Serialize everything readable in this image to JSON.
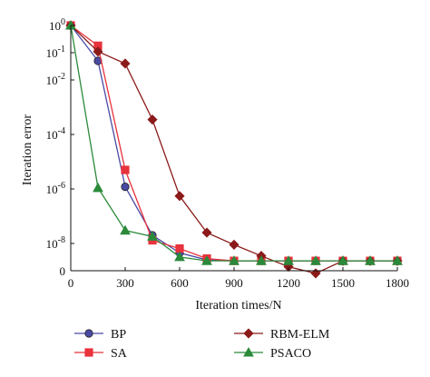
{
  "chart_data": {
    "type": "line",
    "xlabel": "Iteration times/N",
    "ylabel": "Iteration error",
    "xlim": [
      0,
      1800
    ],
    "x_ticks": [
      0,
      300,
      600,
      900,
      1200,
      1500,
      1800
    ],
    "y_scale": "log",
    "y_ticks": [
      {
        "label": "0",
        "value": 1e-09
      },
      {
        "label": "10-8",
        "base": "10",
        "exp": "-8",
        "value": 1e-08
      },
      {
        "label": "10-6",
        "base": "10",
        "exp": "-6",
        "value": 1e-06
      },
      {
        "label": "10-4",
        "base": "10",
        "exp": "-4",
        "value": 0.0001
      },
      {
        "label": "10-2",
        "base": "10",
        "exp": "-2",
        "value": 0.01
      },
      {
        "label": "10-1",
        "base": "10",
        "exp": "-1",
        "value": 0.1
      },
      {
        "label": "100",
        "base": "10",
        "exp": "0",
        "value": 1
      }
    ],
    "grid": false,
    "legend_position": "bottom",
    "series": [
      {
        "name": "BP",
        "color": "#4a4aa6",
        "marker": "circle",
        "x": [
          0,
          150,
          300,
          450,
          600,
          750,
          900,
          1050,
          1200,
          1350,
          1500,
          1650,
          1800
        ],
        "y": [
          1,
          0.05,
          1.2e-06,
          2e-08,
          4.5e-09,
          2.5e-09,
          2.3e-09,
          2.3e-09,
          2.3e-09,
          2.3e-09,
          2.3e-09,
          2.3e-09,
          2.3e-09
        ]
      },
      {
        "name": "SA",
        "color": "#e8323c",
        "marker": "square",
        "x": [
          0,
          150,
          300,
          450,
          600,
          750,
          900,
          1050,
          1200,
          1350,
          1500,
          1650,
          1800
        ],
        "y": [
          1,
          0.18,
          5e-06,
          1.3e-08,
          6.5e-09,
          2.8e-09,
          2.3e-09,
          2.3e-09,
          2.3e-09,
          2.3e-09,
          2.3e-09,
          2.3e-09,
          2.3e-09
        ]
      },
      {
        "name": "RBM-ELM",
        "color": "#8b1a1a",
        "marker": "diamond",
        "x": [
          0,
          150,
          300,
          450,
          600,
          750,
          900,
          1050,
          1200,
          1350,
          1500,
          1650,
          1800
        ],
        "y": [
          1,
          0.11,
          0.04,
          0.00035,
          5.5e-07,
          2.5e-08,
          9e-09,
          3.5e-09,
          1.4e-09,
          8e-10,
          2.3e-09,
          2.3e-09,
          2.3e-09
        ]
      },
      {
        "name": "PSACO",
        "color": "#2a8a3a",
        "marker": "triangle",
        "x": [
          0,
          150,
          300,
          450,
          600,
          750,
          900,
          1050,
          1200,
          1350,
          1500,
          1650,
          1800
        ],
        "y": [
          1,
          1.1e-06,
          3e-08,
          1.8e-08,
          3.2e-09,
          2.3e-09,
          2.3e-09,
          2.3e-09,
          2.3e-09,
          2.3e-09,
          2.3e-09,
          2.3e-09,
          2.3e-09
        ]
      }
    ]
  }
}
